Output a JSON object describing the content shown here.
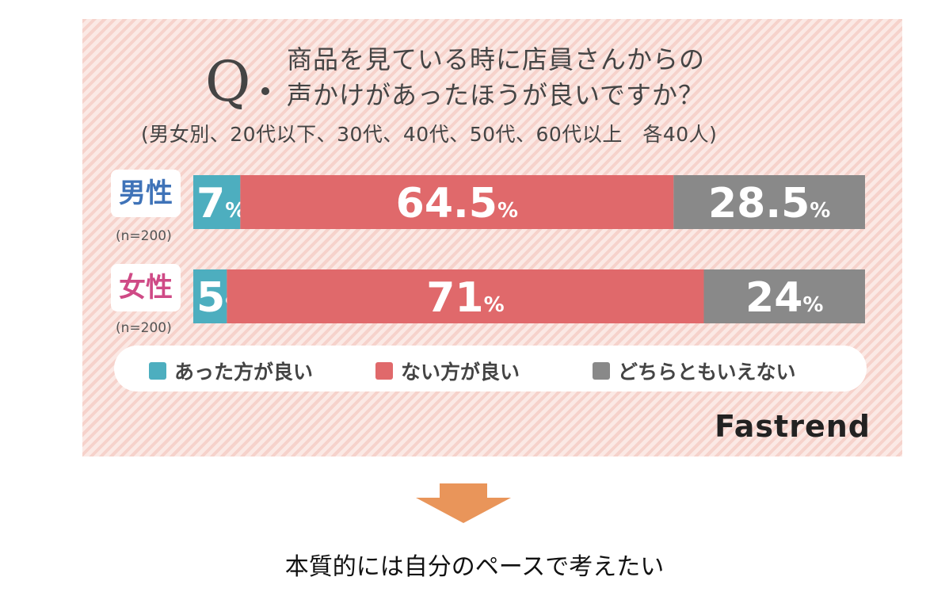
{
  "question": {
    "mark": "Q",
    "line1": "商品を見ている時に店員さんからの",
    "line2": "声かけがあったほうが良いですか？",
    "subtitle": "(男女別、20代以下、30代、40代、50代、60代以上　各40人)"
  },
  "chart_data": {
    "type": "bar",
    "orientation": "horizontal",
    "stacked": true,
    "unit": "%",
    "categories": [
      "男性",
      "女性"
    ],
    "sample_sizes": [
      "(n=200)",
      "(n=200)"
    ],
    "series": [
      {
        "name": "あった方が良い",
        "color": "#4daebf",
        "values": [
          7,
          5
        ],
        "labels": [
          "7",
          "5"
        ]
      },
      {
        "name": "ない方が良い",
        "color": "#e0696b",
        "values": [
          64.5,
          71
        ],
        "labels": [
          "64.5",
          "71"
        ]
      },
      {
        "name": "どちらともいえない",
        "color": "#898989",
        "values": [
          28.5,
          24
        ],
        "labels": [
          "28.5",
          "24"
        ]
      }
    ],
    "category_colors": [
      "#3f73b8",
      "#cf4a86"
    ]
  },
  "brand": "Fastrend",
  "caption": "本質的には自分のペースで考えたい",
  "arrow_color": "#e9955a"
}
